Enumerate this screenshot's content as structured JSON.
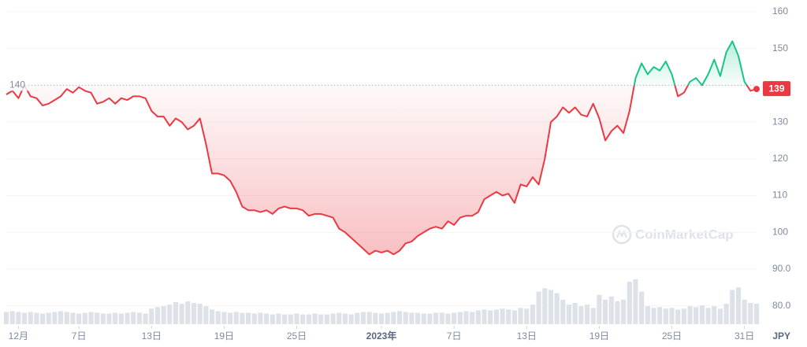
{
  "chart_data": {
    "type": "line",
    "x": [
      0,
      0.5,
      1,
      1.5,
      2,
      2.5,
      3,
      3.5,
      4,
      4.5,
      5,
      5.5,
      6,
      6.5,
      7,
      7.5,
      8,
      8.5,
      9,
      9.5,
      10,
      10.5,
      11,
      11.5,
      12,
      12.5,
      13,
      13.5,
      14,
      14.5,
      15,
      15.5,
      16,
      16.5,
      17,
      17.5,
      18,
      18.5,
      19,
      19.5,
      20,
      20.5,
      21,
      21.5,
      22,
      22.5,
      23,
      23.5,
      24,
      24.5,
      25,
      25.5,
      26,
      26.5,
      27,
      27.5,
      28,
      28.5,
      29,
      29.5,
      30,
      30.5,
      31,
      31.5,
      32,
      32.5,
      33,
      33.5,
      34,
      34.5,
      35,
      35.5,
      36,
      36.5,
      37,
      37.5,
      38,
      38.5,
      39,
      39.5,
      40,
      40.5,
      41,
      41.5,
      42,
      42.5,
      43,
      43.5,
      44,
      44.5,
      45,
      45.5,
      46,
      46.5,
      47,
      47.5,
      48,
      48.5,
      49,
      49.5,
      50,
      50.5,
      51,
      51.5,
      52,
      52.5,
      53,
      53.5,
      54,
      54.5,
      55,
      55.5,
      56,
      56.5,
      57,
      57.5,
      58,
      58.5,
      59,
      59.5,
      60,
      60.5,
      61,
      61.5,
      62
    ],
    "values": [
      137.5,
      138.5,
      136.5,
      140,
      137,
      136.5,
      134.5,
      135,
      136,
      137,
      139,
      138,
      139.5,
      138.5,
      138,
      135,
      135.5,
      136.5,
      135,
      136.5,
      136,
      137,
      137,
      136.5,
      133,
      131.5,
      131.5,
      129,
      131,
      130,
      128,
      129,
      131,
      124,
      116,
      116,
      115.5,
      114,
      111,
      107,
      106,
      106,
      105.5,
      106,
      105,
      106.5,
      107,
      106.5,
      106.5,
      106,
      104.5,
      105,
      105,
      104.5,
      104,
      101,
      100,
      98.5,
      97,
      95.5,
      94,
      95,
      94.5,
      95,
      94,
      95,
      97,
      97.5,
      99,
      100,
      101,
      101.5,
      101,
      103,
      102,
      104,
      104.5,
      104.5,
      105.5,
      109,
      110,
      111,
      110,
      110.5,
      108,
      113,
      112.5,
      115,
      113,
      120,
      130,
      131.5,
      134,
      132.5,
      134,
      132,
      131.5,
      135,
      131,
      125,
      127.5,
      129,
      127,
      133,
      142,
      146,
      143,
      145,
      144,
      146.5,
      143,
      137,
      138,
      141,
      142,
      140,
      143,
      147,
      142.5,
      149,
      152,
      148,
      141,
      138.5,
      139
    ],
    "volume": [
      15,
      16,
      15,
      14,
      15,
      14,
      13,
      14,
      15,
      16,
      15,
      14,
      13,
      14,
      15,
      14,
      13,
      13,
      14,
      13,
      14,
      15,
      14,
      13,
      19,
      21,
      22,
      24,
      27,
      25,
      28,
      26,
      25,
      22,
      18,
      16,
      15,
      14,
      15,
      14,
      14,
      13,
      14,
      13,
      12,
      13,
      12,
      12,
      13,
      12,
      12,
      13,
      12,
      12,
      13,
      14,
      13,
      12,
      14,
      15,
      15,
      14,
      13,
      14,
      15,
      16,
      15,
      14,
      14,
      13,
      13,
      14,
      14,
      13,
      14,
      15,
      16,
      15,
      17,
      18,
      17,
      18,
      19,
      18,
      17,
      20,
      19,
      24,
      40,
      44,
      42,
      38,
      30,
      24,
      26,
      22,
      24,
      20,
      36,
      30,
      34,
      28,
      30,
      52,
      55,
      40,
      22,
      20,
      21,
      19,
      20,
      18,
      19,
      22,
      21,
      23,
      20,
      22,
      19,
      25,
      42,
      45,
      30,
      26,
      25
    ],
    "baseline": 140,
    "up_color": "#16c784",
    "down_color": "#ea3943",
    "xlim": [
      0,
      62
    ],
    "ylim": [
      75,
      163
    ],
    "yticks": [
      {
        "value": 80,
        "label": "80.0"
      },
      {
        "value": 90,
        "label": "90.0"
      },
      100,
      110,
      120,
      130,
      140,
      150,
      160
    ],
    "xticks": [
      {
        "value": 1,
        "label": "12月"
      },
      {
        "value": 6,
        "label": "7日"
      },
      {
        "value": 12,
        "label": "13日"
      },
      {
        "value": 18,
        "label": "19日"
      },
      {
        "value": 24,
        "label": "25日"
      },
      {
        "value": 31,
        "label": "2023年"
      },
      {
        "value": 37,
        "label": "7日"
      },
      {
        "value": 43,
        "label": "13日"
      },
      {
        "value": 49,
        "label": "19日"
      },
      {
        "value": 55,
        "label": "25日"
      },
      {
        "value": 61,
        "label": "31日"
      }
    ],
    "currency": "JPY",
    "watermark": "CoinMarketCap",
    "grid": true
  }
}
